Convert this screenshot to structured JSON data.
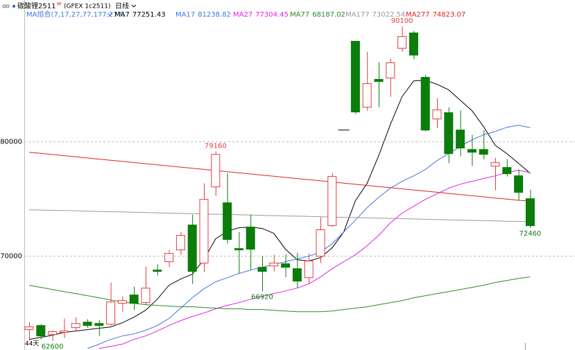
{
  "chart_data": {
    "type": "candlestick",
    "title": "碳酸锂2511",
    "title_mark": "M",
    "subtitle": "(GFEX 1c2511)",
    "period": "日线",
    "indicator": "MA组合(7,17,27,77,177,277)",
    "bottom_note": "44天",
    "ylim": [
      61800,
      92400
    ],
    "yticks": [
      70000,
      80000
    ],
    "grid": true,
    "up_color": "#e8393c",
    "down_color": "#0a7d0a",
    "doji_color": "#000000",
    "open": [
      63580,
      63940,
      63150,
      63340,
      63760,
      64240,
      64120,
      64060,
      65880,
      66610,
      65940,
      68790,
      69520,
      70550,
      72730,
      69400,
      76060,
      74670,
      70670,
      72550,
      69030,
      69150,
      69340,
      68910,
      68120,
      70000,
      72670,
      81030,
      88790,
      83030,
      85460,
      85580,
      88180,
      89520,
      85640,
      82000,
      82550,
      81030,
      79330,
      79330,
      77880,
      77760,
      77030,
      75030
    ],
    "high": [
      64240,
      64060,
      63520,
      64550,
      64670,
      64490,
      64430,
      67700,
      66490,
      67340,
      69090,
      69280,
      70550,
      72120,
      73640,
      76370,
      79160,
      77270,
      72120,
      73640,
      70000,
      70120,
      70180,
      70310,
      70240,
      73400,
      77270,
      81030,
      88790,
      87880,
      86970,
      87270,
      90100,
      89700,
      85880,
      83820,
      83030,
      82730,
      80610,
      81030,
      78610,
      78490,
      77580,
      75820
    ],
    "low": [
      62610,
      62730,
      62600,
      62850,
      63460,
      63760,
      63030,
      63940,
      65150,
      65280,
      65760,
      68310,
      69030,
      70120,
      67580,
      68610,
      75270,
      71090,
      68490,
      68790,
      66920,
      68670,
      68180,
      67210,
      67580,
      69400,
      72550,
      81030,
      82430,
      82730,
      83030,
      83940,
      87880,
      87210,
      80910,
      81210,
      78120,
      78730,
      77880,
      78490,
      75760,
      76970,
      74850,
      72460
    ],
    "close": [
      63820,
      63030,
      63400,
      63460,
      64120,
      63940,
      63940,
      66000,
      66120,
      65880,
      67210,
      68670,
      70240,
      71820,
      68670,
      74970,
      78900,
      71460,
      70550,
      70610,
      68670,
      69400,
      69030,
      67820,
      69580,
      72310,
      76970,
      81030,
      82610,
      85090,
      85270,
      86910,
      89210,
      87580,
      81030,
      82790,
      78970,
      79460,
      79090,
      78910,
      78180,
      77210,
      75580,
      72670
    ],
    "series": [
      {
        "name": "MA7",
        "color": "#000000",
        "values": [
          62730,
          62910,
          63090,
          63340,
          63460,
          63580,
          63700,
          63820,
          64180,
          64670,
          65280,
          66240,
          67460,
          68000,
          68430,
          69700,
          71520,
          72180,
          72490,
          72550,
          72430,
          72000,
          70610,
          69700,
          69580,
          69880,
          70730,
          72120,
          74850,
          76360,
          78790,
          81520,
          83940,
          85330,
          85390,
          85030,
          84550,
          83640,
          82730,
          81330,
          79700,
          78970,
          78120,
          77251.43
        ]
      },
      {
        "name": "MA17",
        "color": "#3f76e0",
        "values": [
          null,
          null,
          null,
          null,
          null,
          61940,
          62310,
          62730,
          63030,
          63210,
          63520,
          63940,
          64550,
          65460,
          66370,
          67150,
          67760,
          68120,
          68490,
          68790,
          69030,
          69280,
          69520,
          69760,
          70000,
          70360,
          71090,
          72120,
          73150,
          74240,
          75150,
          75940,
          76550,
          77030,
          77580,
          78360,
          78970,
          79580,
          80180,
          80610,
          80910,
          81270,
          81450,
          81238.82
        ]
      },
      {
        "name": "MA27",
        "color": "#e020e0",
        "values": [
          null,
          null,
          null,
          null,
          null,
          null,
          61940,
          62120,
          62310,
          62730,
          63030,
          63460,
          63940,
          64370,
          64730,
          65030,
          65400,
          65700,
          65940,
          66240,
          66490,
          66730,
          66970,
          67210,
          67580,
          68180,
          68910,
          69520,
          70120,
          70910,
          71820,
          72910,
          73760,
          74360,
          74970,
          75450,
          75940,
          76300,
          76550,
          76790,
          77030,
          77330,
          77520,
          77304.45
        ]
      },
      {
        "name": "MA77",
        "color": "#2a8a2a",
        "values": [
          67460,
          67280,
          67090,
          66910,
          66730,
          66550,
          66370,
          66180,
          66000,
          65880,
          65760,
          65700,
          65640,
          65580,
          65580,
          65520,
          65460,
          65400,
          65400,
          65340,
          65340,
          65270,
          65210,
          65150,
          65150,
          65150,
          65210,
          65340,
          65460,
          65580,
          65760,
          65940,
          66120,
          66370,
          66550,
          66730,
          66910,
          67090,
          67280,
          67460,
          67700,
          67880,
          68060,
          68187.02
        ]
      },
      {
        "name": "MA177",
        "color": "#999999",
        "values": [
          74060,
          74040,
          74010,
          73990,
          73960,
          73940,
          73910,
          73890,
          73870,
          73840,
          73820,
          73790,
          73770,
          73740,
          73720,
          73690,
          73670,
          73650,
          73620,
          73600,
          73570,
          73550,
          73520,
          73500,
          73480,
          73450,
          73430,
          73400,
          73380,
          73350,
          73330,
          73310,
          73280,
          73260,
          73230,
          73210,
          73180,
          73160,
          73130,
          73110,
          73090,
          73060,
          73040,
          73022.54
        ]
      },
      {
        "name": "MA277",
        "color": "#e02020",
        "values": [
          79090,
          78990,
          78890,
          78790,
          78690,
          78590,
          78490,
          78390,
          78290,
          78190,
          78090,
          77990,
          77890,
          77790,
          77690,
          77590,
          77490,
          77390,
          77290,
          77190,
          77090,
          76990,
          76890,
          76790,
          76690,
          76590,
          76490,
          76390,
          76290,
          76190,
          76090,
          75990,
          75890,
          75790,
          75690,
          75590,
          75490,
          75390,
          75290,
          75190,
          75090,
          74990,
          74890,
          74823.07
        ]
      }
    ]
  }
}
